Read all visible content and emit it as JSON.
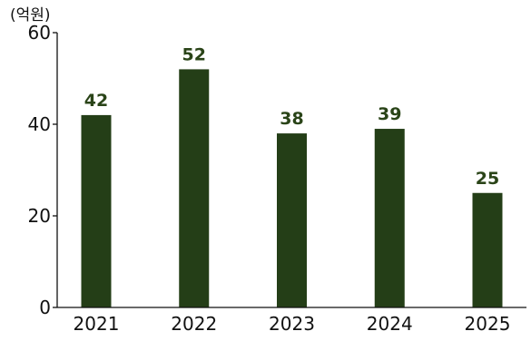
{
  "chart_data": {
    "type": "bar",
    "unit_label": "(억원)",
    "categories": [
      "2021",
      "2022",
      "2023",
      "2024",
      "2025"
    ],
    "values": [
      42,
      52,
      38,
      39,
      25
    ],
    "data_labels": [
      "42",
      "52",
      "38",
      "39",
      "25"
    ],
    "ylim": [
      0,
      60
    ],
    "yticks": [
      0,
      20,
      40,
      60
    ],
    "grid": false,
    "legend": "none",
    "bar_color": "#243e17",
    "label_color": "#2a4418"
  }
}
